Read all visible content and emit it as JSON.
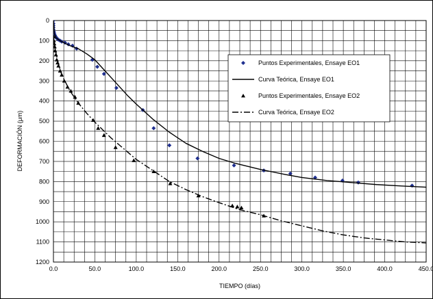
{
  "chart_data": {
    "type": "scatter",
    "xlabel": "TIEMPO (días)",
    "ylabel": "DEFORMACIÓN (μm)",
    "xlim": [
      0,
      450
    ],
    "ylim": [
      0,
      1200
    ],
    "y_reversed": true,
    "x_tick_labels": [
      "0.0",
      "50.0",
      "100.0",
      "150.0",
      "200.0",
      "250.0",
      "300.0",
      "350.0",
      "400.0",
      "450.0"
    ],
    "y_tick_labels": [
      "0",
      "100",
      "200",
      "300",
      "400",
      "500",
      "600",
      "700",
      "800",
      "900",
      "1000",
      "1100",
      "1200"
    ],
    "grid": true,
    "legend_position": "top-right",
    "series": [
      {
        "name": "Puntos Experimentales, Ensaye EO1",
        "kind": "points",
        "marker": "diamond",
        "color": "#1f2f8f",
        "x": [
          0,
          0,
          0,
          0,
          0,
          0.5,
          0.5,
          1,
          1,
          1.5,
          2,
          2,
          3,
          3,
          4,
          5,
          6,
          8,
          10,
          14,
          18,
          23,
          28,
          47,
          53,
          61,
          76,
          108,
          121,
          140,
          174,
          218,
          254,
          286,
          316,
          349,
          368,
          433
        ],
        "y": [
          0,
          15,
          25,
          35,
          45,
          55,
          60,
          65,
          70,
          72,
          75,
          78,
          82,
          85,
          88,
          92,
          95,
          100,
          105,
          110,
          118,
          125,
          140,
          195,
          230,
          265,
          335,
          445,
          535,
          620,
          685,
          720,
          745,
          760,
          780,
          795,
          805,
          820
        ]
      },
      {
        "name": "Curva Teórica, Ensaye EO1",
        "kind": "line",
        "dash": "solid",
        "color": "#000000",
        "x": [
          0,
          1,
          3,
          6,
          10,
          15,
          20,
          30,
          40,
          50,
          60,
          70,
          80,
          90,
          100,
          120,
          140,
          160,
          180,
          200,
          220,
          250,
          280,
          300,
          330,
          360,
          390,
          420,
          450
        ],
        "y": [
          0,
          65,
          85,
          95,
          105,
          115,
          125,
          140,
          165,
          195,
          240,
          285,
          330,
          375,
          415,
          490,
          555,
          610,
          650,
          685,
          710,
          740,
          765,
          780,
          795,
          805,
          815,
          822,
          828
        ]
      },
      {
        "name": "Puntos Experimentales, Ensaye EO2",
        "kind": "points",
        "marker": "triangle",
        "color": "#000000",
        "x": [
          0,
          0.5,
          1,
          1.5,
          2,
          3,
          4,
          5,
          6,
          8,
          10,
          13,
          17,
          21,
          26,
          30,
          48,
          54,
          61,
          75,
          97,
          121,
          141,
          175,
          216,
          222,
          227,
          254
        ],
        "y": [
          80,
          100,
          115,
          130,
          150,
          170,
          195,
          210,
          225,
          250,
          270,
          300,
          330,
          350,
          380,
          410,
          495,
          535,
          570,
          630,
          695,
          750,
          810,
          870,
          920,
          925,
          930,
          970
        ]
      },
      {
        "name": "Curva Teórica, Ensaye EO2",
        "kind": "line",
        "dash": "dashdot",
        "color": "#000000",
        "x": [
          0,
          2,
          5,
          10,
          15,
          20,
          30,
          40,
          50,
          60,
          70,
          80,
          90,
          100,
          120,
          140,
          160,
          180,
          200,
          225,
          250,
          275,
          300,
          325,
          350,
          375,
          400,
          425,
          450
        ],
        "y": [
          80,
          140,
          200,
          270,
          310,
          350,
          410,
          460,
          505,
          545,
          585,
          620,
          655,
          690,
          745,
          800,
          840,
          875,
          905,
          940,
          965,
          995,
          1020,
          1045,
          1065,
          1080,
          1090,
          1100,
          1105
        ]
      }
    ]
  }
}
